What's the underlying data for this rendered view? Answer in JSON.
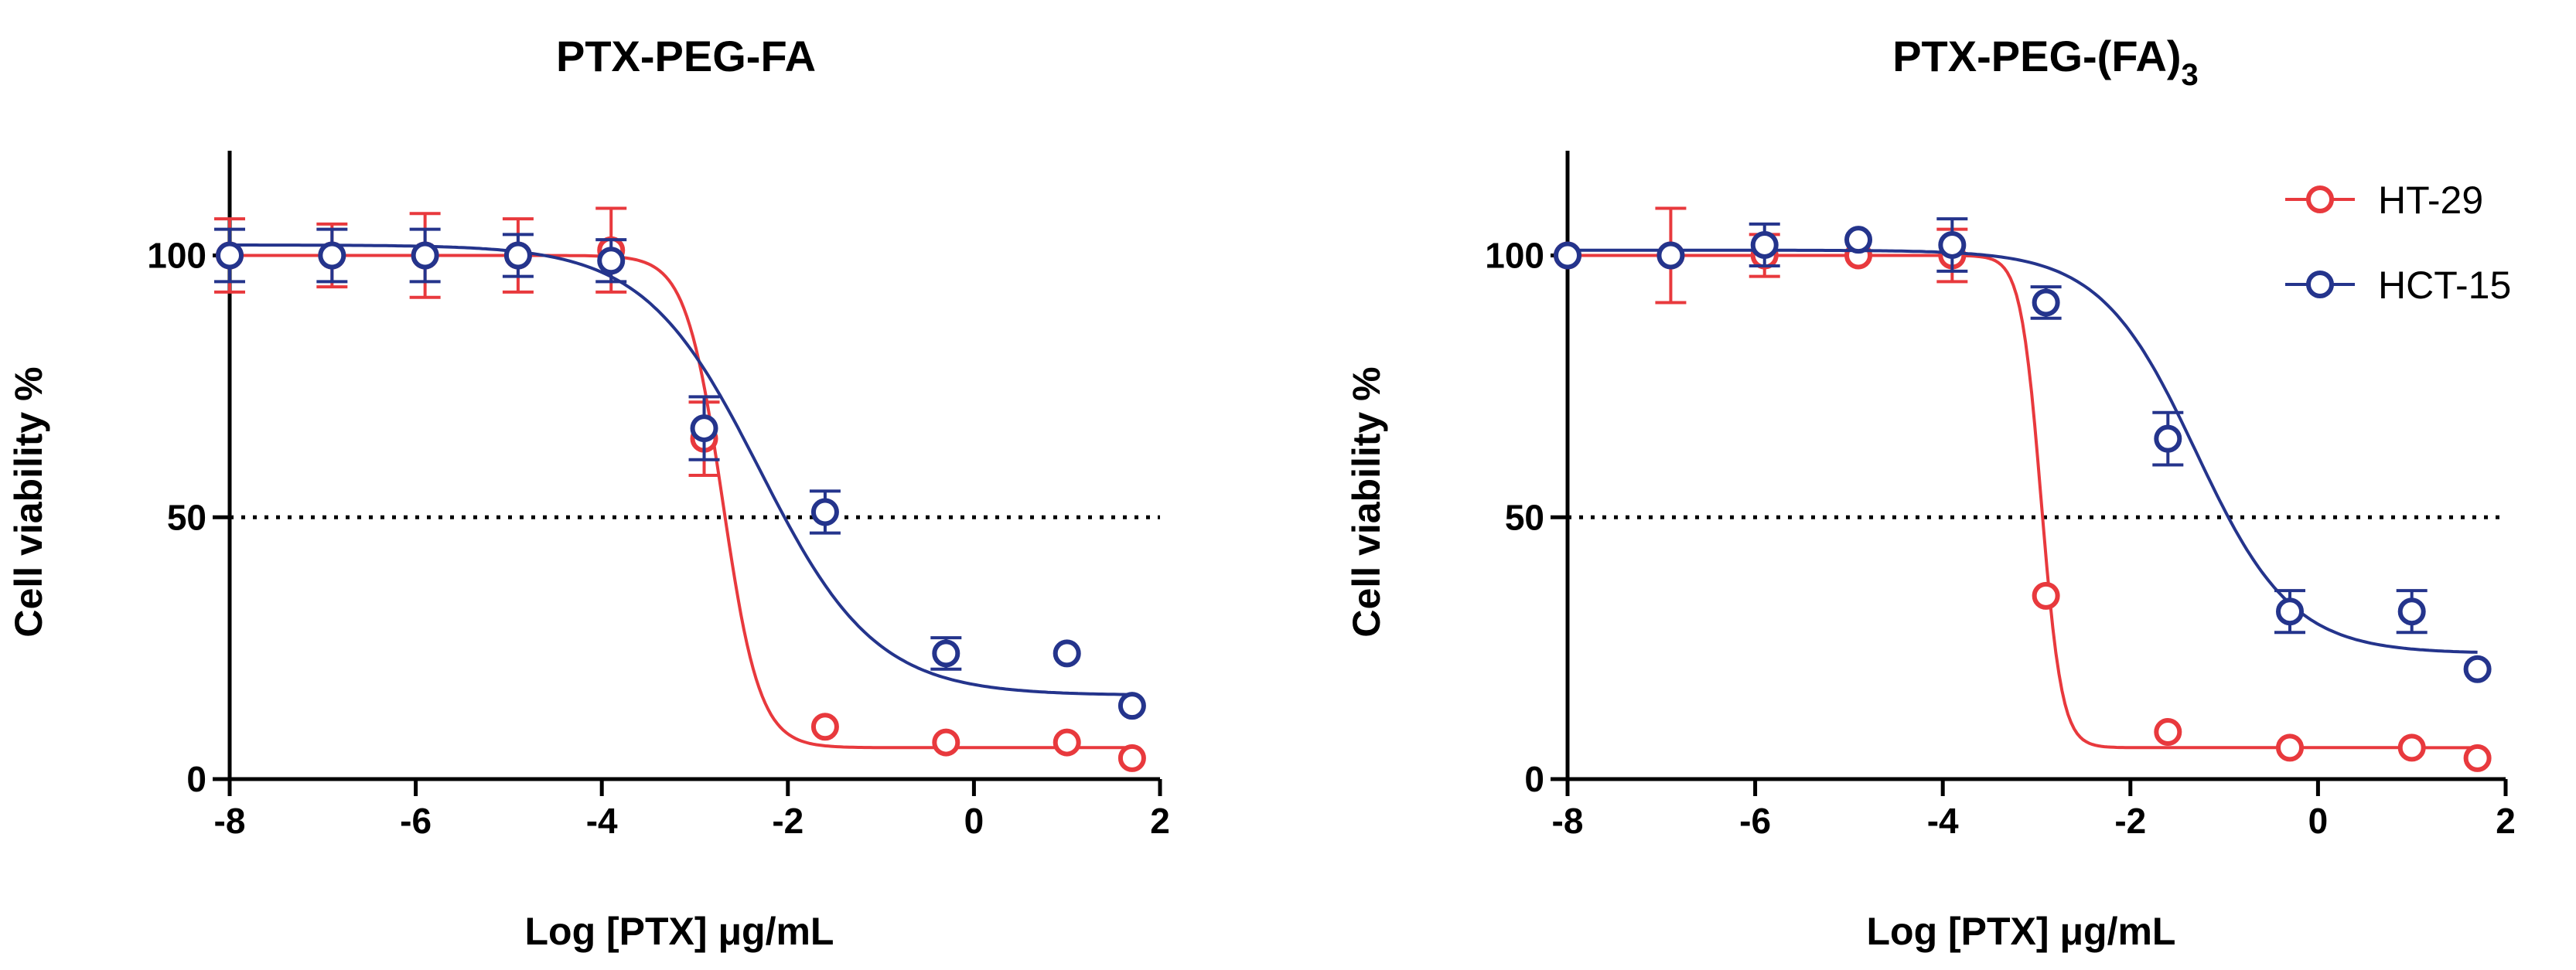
{
  "chart_data": [
    {
      "type": "scatter",
      "title": "PTX-PEG-FA",
      "title_base": "PTX-PEG-FA",
      "title_sub": "",
      "xlabel": "Log [PTX] μg/mL",
      "ylabel": "Cell viability %",
      "xlim": [
        -8,
        2
      ],
      "ylim": [
        0,
        120
      ],
      "xticks": [
        -8,
        -6,
        -4,
        -2,
        0,
        2
      ],
      "yticks": [
        0,
        50,
        100
      ],
      "reference_line": 50,
      "grid": false,
      "legend_visible": false,
      "series": [
        {
          "name": "HT-29",
          "color": "#e8393d",
          "x": [
            -8,
            -6.9,
            -5.9,
            -4.9,
            -3.9,
            -2.9,
            -1.6,
            -0.3,
            1.0,
            1.7
          ],
          "y": [
            100,
            100,
            100,
            100,
            101,
            65,
            10,
            7,
            7,
            4
          ],
          "err": [
            7,
            6,
            8,
            7,
            8,
            7,
            0,
            0,
            0,
            0
          ],
          "fit": {
            "top": 100,
            "bottom": 6,
            "logEC50": -2.7,
            "hill": -2.2
          }
        },
        {
          "name": "HCT-15",
          "color": "#24348c",
          "x": [
            -8,
            -6.9,
            -5.9,
            -4.9,
            -3.9,
            -2.9,
            -1.6,
            -0.3,
            1.0,
            1.7
          ],
          "y": [
            100,
            100,
            100,
            100,
            99,
            67,
            51,
            24,
            24,
            14
          ],
          "err": [
            5,
            5,
            5,
            4,
            4,
            6,
            4,
            3,
            0,
            0
          ],
          "fit": {
            "top": 102,
            "bottom": 16,
            "logEC50": -2.3,
            "hill": -0.7
          }
        }
      ]
    },
    {
      "type": "scatter",
      "title": "PTX-PEG-(FA)3",
      "title_base": "PTX-PEG-(FA)",
      "title_sub": "3",
      "xlabel": "Log [PTX] μg/mL",
      "ylabel": "Cell viability %",
      "xlim": [
        -8,
        2
      ],
      "ylim": [
        0,
        120
      ],
      "xticks": [
        -8,
        -6,
        -4,
        -2,
        0,
        2
      ],
      "yticks": [
        0,
        50,
        100
      ],
      "reference_line": 50,
      "grid": false,
      "legend_visible": true,
      "legend_position": "top-right",
      "series": [
        {
          "name": "HT-29",
          "color": "#e8393d",
          "x": [
            -8,
            -6.9,
            -5.9,
            -4.9,
            -3.9,
            -2.9,
            -1.6,
            -0.3,
            1.0,
            1.7
          ],
          "y": [
            100,
            100,
            100,
            100,
            100,
            35,
            9,
            6,
            6,
            4
          ],
          "err": [
            0,
            9,
            4,
            0,
            5,
            0,
            0,
            0,
            0,
            0
          ],
          "fit": {
            "top": 100,
            "bottom": 6,
            "logEC50": -2.95,
            "hill": -4.0
          }
        },
        {
          "name": "HCT-15",
          "color": "#24348c",
          "x": [
            -8,
            -6.9,
            -5.9,
            -4.9,
            -3.9,
            -2.9,
            -1.6,
            -0.3,
            1.0,
            1.7
          ],
          "y": [
            100,
            100,
            102,
            103,
            102,
            91,
            65,
            32,
            32,
            21
          ],
          "err": [
            0,
            0,
            4,
            0,
            5,
            3,
            5,
            4,
            4,
            0
          ],
          "fit": {
            "top": 101,
            "bottom": 24,
            "logEC50": -1.3,
            "hill": -0.85
          }
        }
      ]
    }
  ]
}
